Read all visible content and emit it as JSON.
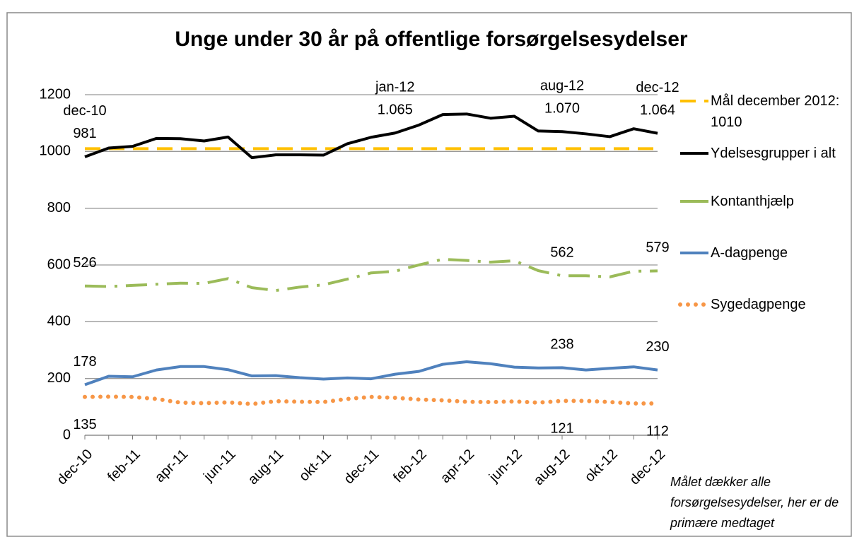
{
  "chart_data": {
    "type": "line",
    "title": "Unge under 30 år på offentlige forsørgelsesydelser",
    "note": "Målet dækker alle forsørgelsesydelser, her er de primære medtaget",
    "categories": [
      "dec-10",
      null,
      "feb-11",
      null,
      "apr-11",
      null,
      "jun-11",
      null,
      "aug-11",
      null,
      "okt-11",
      null,
      "dec-11",
      null,
      "feb-12",
      null,
      "apr-12",
      null,
      "jun-12",
      null,
      "aug-12",
      null,
      "okt-12",
      null,
      "dec-12"
    ],
    "ylim": [
      0,
      1200
    ],
    "yticks": [
      0,
      200,
      400,
      600,
      800,
      1000,
      1200
    ],
    "grid": true,
    "legend": "right",
    "annotations": [
      "dec-10",
      "jan-12",
      "aug-12",
      "dec-12"
    ],
    "series": [
      {
        "name": "Mål december 2012: 1010",
        "color": "#ffc000",
        "style": "dashed",
        "values": [
          1010,
          1010,
          1010,
          1010,
          1010,
          1010,
          1010,
          1010,
          1010,
          1010,
          1010,
          1010,
          1010,
          1010,
          1010,
          1010,
          1010,
          1010,
          1010,
          1010,
          1010,
          1010,
          1010,
          1010,
          1010
        ]
      },
      {
        "name": "Ydelsesgrupper i alt",
        "color": "#000000",
        "style": "solid",
        "values": [
          981,
          1012,
          1018,
          1046,
          1045,
          1037,
          1051,
          978,
          988,
          988,
          987,
          1027,
          1050,
          1065,
          1093,
          1130,
          1132,
          1117,
          1124,
          1072,
          1070,
          1062,
          1052,
          1080,
          1064
        ],
        "value_labels": [
          "981",
          null,
          null,
          null,
          null,
          null,
          null,
          null,
          null,
          null,
          null,
          null,
          null,
          "1.065",
          null,
          null,
          null,
          null,
          null,
          null,
          "1.070",
          null,
          null,
          null,
          "1.064"
        ]
      },
      {
        "name": "Kontanthjælp",
        "color": "#9bbb59",
        "style": "dashdot",
        "values": [
          526,
          524,
          528,
          532,
          536,
          535,
          552,
          520,
          510,
          522,
          530,
          550,
          572,
          578,
          600,
          620,
          616,
          610,
          615,
          580,
          562,
          562,
          558,
          578,
          579
        ],
        "value_labels": [
          "526",
          null,
          null,
          null,
          null,
          null,
          null,
          null,
          null,
          null,
          null,
          null,
          null,
          null,
          null,
          null,
          null,
          null,
          null,
          null,
          "562",
          null,
          null,
          null,
          "579"
        ]
      },
      {
        "name": "A-dagpenge",
        "color": "#4f81bd",
        "style": "solid",
        "values": [
          178,
          208,
          206,
          230,
          242,
          242,
          231,
          209,
          210,
          203,
          198,
          202,
          199,
          215,
          225,
          250,
          259,
          252,
          240,
          237,
          238,
          230,
          236,
          241,
          230
        ],
        "value_labels": [
          "178",
          null,
          null,
          null,
          null,
          null,
          null,
          null,
          null,
          null,
          null,
          null,
          null,
          null,
          null,
          null,
          null,
          null,
          null,
          null,
          "238",
          null,
          null,
          null,
          "230"
        ]
      },
      {
        "name": "Sygedagpenge",
        "color": "#f79646",
        "style": "dotted",
        "values": [
          135,
          136,
          135,
          128,
          115,
          113,
          116,
          110,
          120,
          118,
          117,
          128,
          135,
          132,
          126,
          123,
          118,
          117,
          119,
          115,
          121,
          121,
          117,
          112,
          112
        ],
        "value_labels": [
          "135",
          null,
          null,
          null,
          null,
          null,
          null,
          null,
          null,
          null,
          null,
          null,
          null,
          null,
          null,
          null,
          null,
          null,
          null,
          null,
          "121",
          null,
          null,
          null,
          "112"
        ]
      }
    ]
  }
}
